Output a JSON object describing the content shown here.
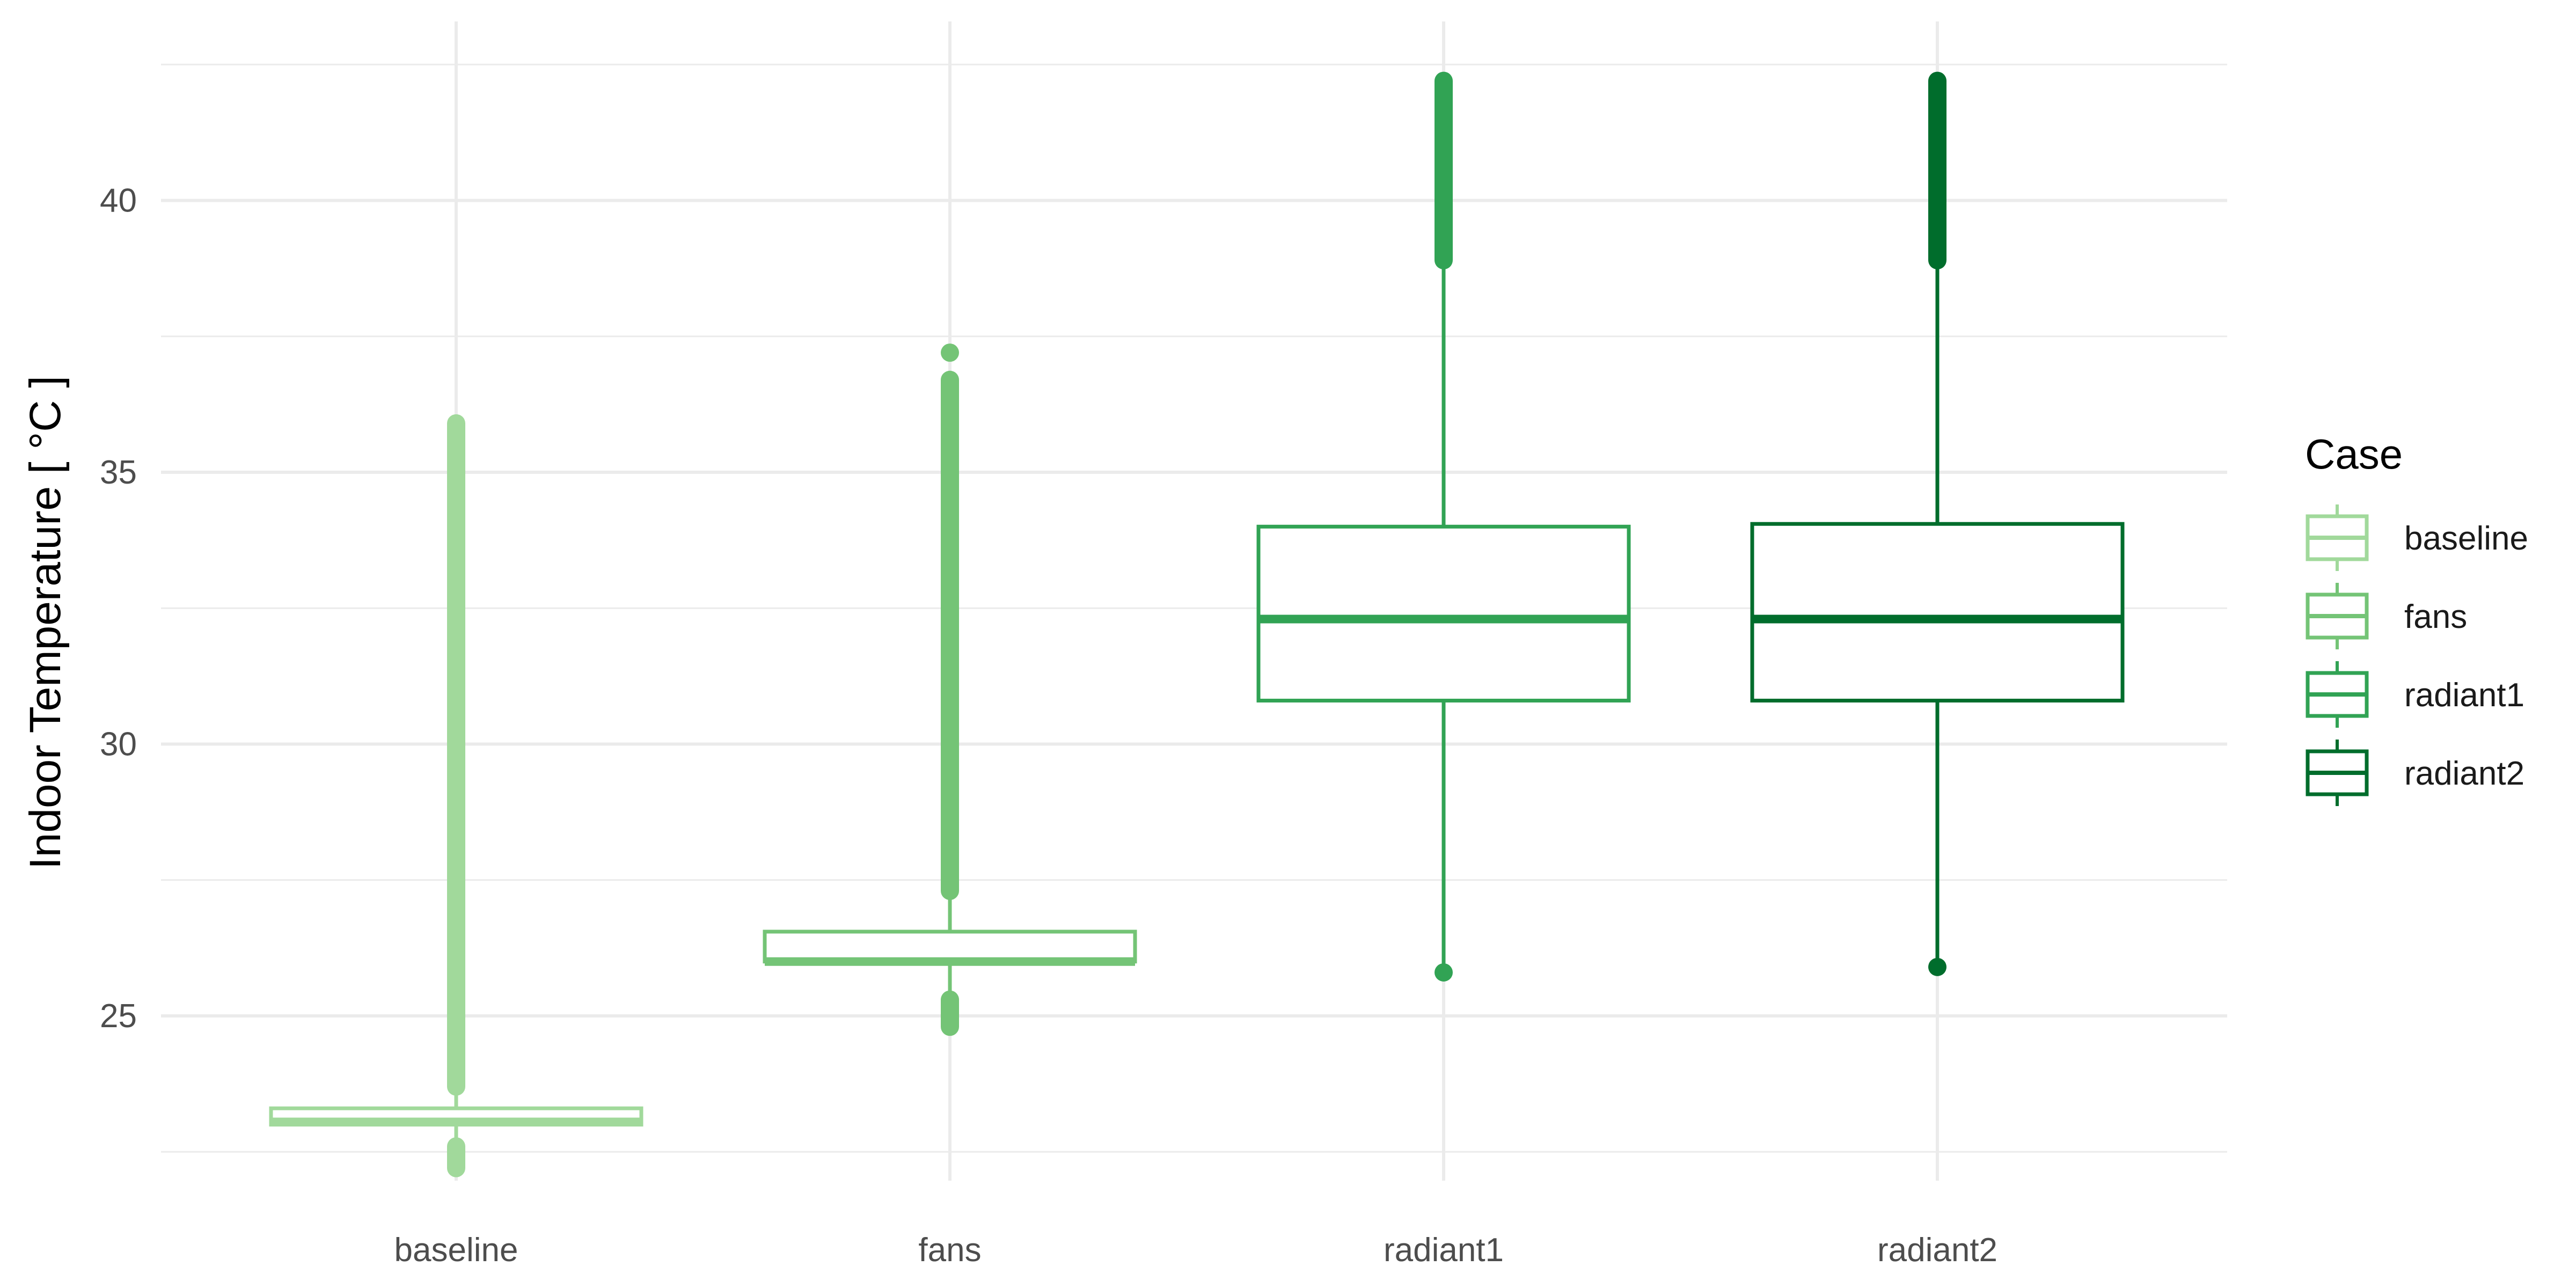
{
  "chart_data": {
    "type": "box",
    "title": "",
    "xlabel": "",
    "ylabel": "Indoor Temperature [ °C ]",
    "ylim": [
      21.5,
      43.0
    ],
    "y_ticks": [
      25,
      30,
      35,
      40
    ],
    "grid": true,
    "legend": {
      "title": "Case",
      "position": "right"
    },
    "categories": [
      "baseline",
      "fans",
      "radiant1",
      "radiant2"
    ],
    "series": [
      {
        "name": "baseline",
        "color": "#a1d99b",
        "min": 22.3,
        "q1": 23.0,
        "median": 23.05,
        "q3": 23.3,
        "max": 23.7,
        "outliers_high": [
          23.7,
          35.9
        ],
        "outliers_low": [
          22.2,
          22.6
        ]
      },
      {
        "name": "fans",
        "color": "#74c476",
        "min": 25.3,
        "q1": 26.0,
        "median": 26.0,
        "q3": 26.55,
        "max": 27.3,
        "outliers_high": [
          27.3,
          36.7,
          37.2
        ],
        "outliers_low": [
          24.8,
          25.3
        ]
      },
      {
        "name": "radiant1",
        "color": "#31a354",
        "min": 25.8,
        "q1": 30.8,
        "median": 32.3,
        "q3": 34.0,
        "max": 38.9,
        "outliers_high": [
          38.9,
          42.2
        ],
        "outliers_low": [
          25.8
        ]
      },
      {
        "name": "radiant2",
        "color": "#006d2c",
        "min": 25.9,
        "q1": 30.8,
        "median": 32.3,
        "q3": 34.05,
        "max": 38.9,
        "outliers_high": [
          38.9,
          42.2
        ],
        "outliers_low": [
          25.9
        ]
      }
    ]
  }
}
